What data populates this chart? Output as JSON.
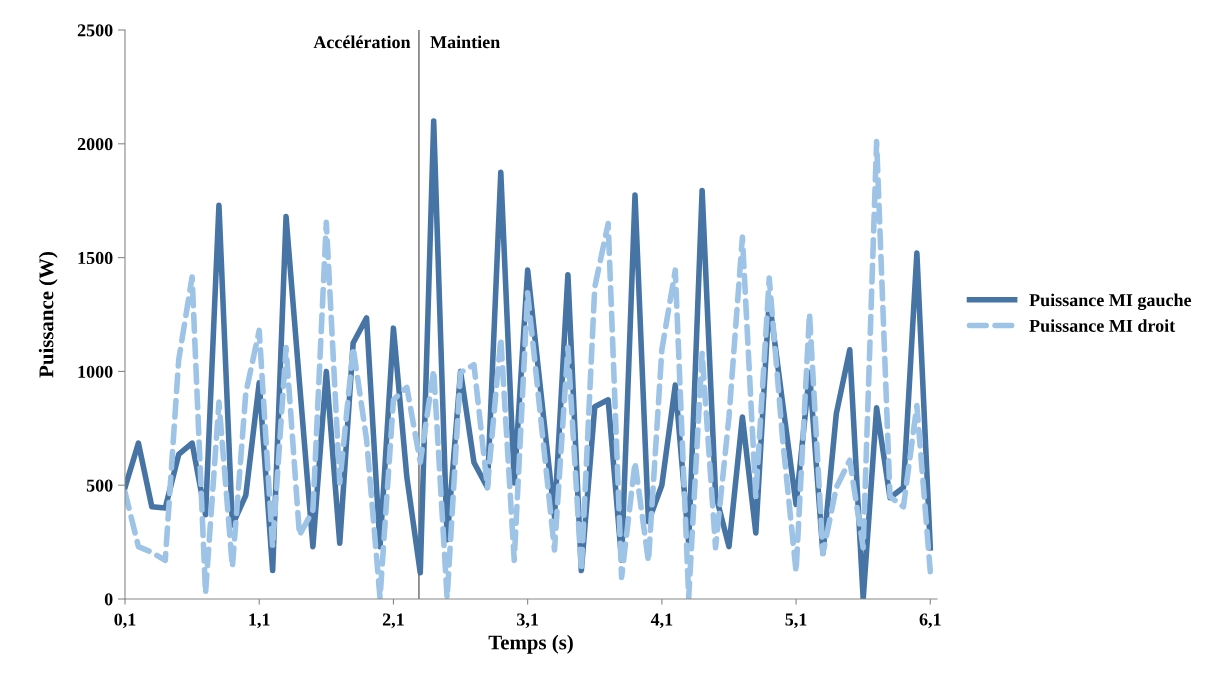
{
  "chart_data": {
    "type": "line",
    "xlabel": "Temps (s)",
    "ylabel": "Puissance (W)",
    "x": [
      0.1,
      0.2,
      0.3,
      0.4,
      0.5,
      0.6,
      0.7,
      0.8,
      0.9,
      1.0,
      1.1,
      1.2,
      1.3,
      1.4,
      1.5,
      1.6,
      1.7,
      1.8,
      1.9,
      2.0,
      2.1,
      2.2,
      2.3,
      2.4,
      2.5,
      2.6,
      2.7,
      2.8,
      2.9,
      3.0,
      3.1,
      3.2,
      3.3,
      3.4,
      3.5,
      3.6,
      3.7,
      3.8,
      3.9,
      4.0,
      4.1,
      4.2,
      4.3,
      4.4,
      4.5,
      4.6,
      4.7,
      4.8,
      4.9,
      5.0,
      5.1,
      5.2,
      5.3,
      5.4,
      5.5,
      5.6,
      5.7,
      5.8,
      5.9,
      6.0,
      6.1
    ],
    "series": [
      {
        "name": "Puissance MI gauche",
        "color": "#4674a4",
        "line_style": "solid",
        "values": [
          490,
          685,
          405,
          400,
          635,
          685,
          370,
          1730,
          325,
          455,
          950,
          125,
          1680,
          950,
          230,
          1000,
          245,
          1125,
          1235,
          230,
          1190,
          535,
          115,
          2100,
          260,
          1000,
          600,
          490,
          1875,
          510,
          1445,
          900,
          360,
          1425,
          125,
          845,
          875,
          170,
          1775,
          340,
          500,
          940,
          245,
          1795,
          460,
          230,
          800,
          290,
          1315,
          860,
          415,
          995,
          200,
          815,
          1095,
          0,
          840,
          445,
          490,
          1520,
          225
        ]
      },
      {
        "name": "Puissance MI droit",
        "color": "#9dc3e6",
        "line_style": "dashed",
        "values": [
          470,
          230,
          205,
          170,
          1050,
          1415,
          25,
          865,
          140,
          905,
          1180,
          230,
          1105,
          280,
          390,
          1655,
          510,
          1105,
          700,
          5,
          875,
          930,
          600,
          1005,
          5,
          995,
          1030,
          490,
          1145,
          170,
          1345,
          780,
          215,
          1105,
          125,
          1370,
          1650,
          95,
          600,
          165,
          1095,
          1445,
          5,
          1080,
          225,
          800,
          1590,
          450,
          1410,
          700,
          120,
          1255,
          200,
          490,
          610,
          225,
          2010,
          450,
          405,
          850,
          120
        ]
      }
    ],
    "xlim": [
      0.1,
      6.15
    ],
    "xticks": [
      {
        "value": 0.1,
        "label": "0,1"
      },
      {
        "value": 1.1,
        "label": "1,1"
      },
      {
        "value": 2.1,
        "label": "2,1"
      },
      {
        "value": 3.1,
        "label": "3,1"
      },
      {
        "value": 4.1,
        "label": "4,1"
      },
      {
        "value": 5.1,
        "label": "5,1"
      },
      {
        "value": 6.1,
        "label": "6,1"
      }
    ],
    "ylim": [
      0,
      2500
    ],
    "yticks": [
      0,
      500,
      1000,
      1500,
      2000,
      2500
    ],
    "ref_lines": [
      {
        "axis": "x",
        "value": 2.29,
        "color": "#808080"
      }
    ],
    "annotations": [
      "Accélération",
      "Maintien"
    ],
    "legend": "right",
    "grid": false,
    "marker": "none"
  }
}
